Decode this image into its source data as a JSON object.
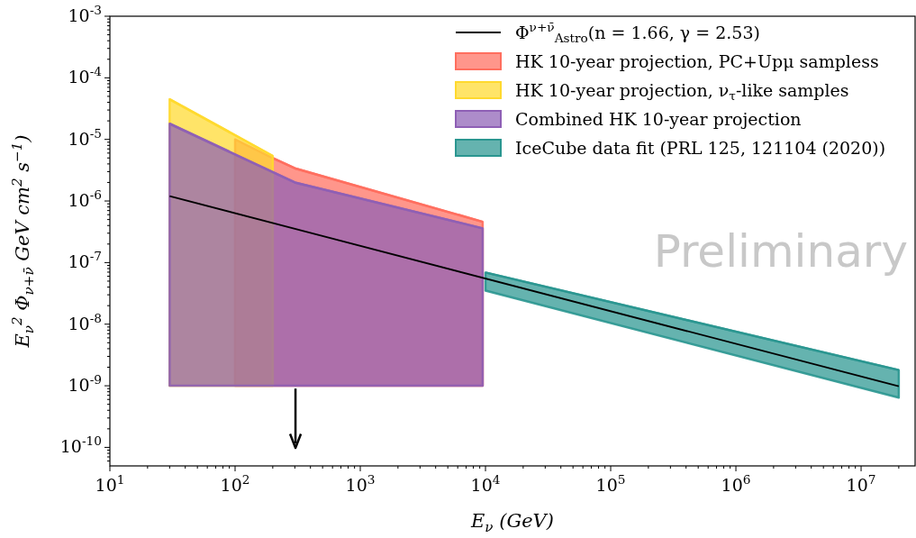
{
  "chart_data": {
    "type": "line",
    "xlabel": "E$_{ν}$ (GeV)",
    "ylabel": "E$_{ν}$$^{2}$ Φ$_{ν+ν̄}$ GeV cm$^{2}$ s$^{−1}$)",
    "log": "xy",
    "xlim": [
      10,
      27000000
    ],
    "ylim": [
      5e-11,
      0.001
    ],
    "xticks": [
      {
        "value": 10,
        "label": "10$^{1}$"
      },
      {
        "value": 100,
        "label": "10$^{2}$"
      },
      {
        "value": 1000,
        "label": "10$^{3}$"
      },
      {
        "value": 10000,
        "label": "10$^{4}$"
      },
      {
        "value": 100000,
        "label": "10$^{5}$"
      },
      {
        "value": 1000000,
        "label": "10$^{6}$"
      },
      {
        "value": 10000000,
        "label": "10$^{7}$"
      }
    ],
    "yticks": [
      {
        "value": 1e-10,
        "label": "10$^{-10}$"
      },
      {
        "value": 1e-09,
        "label": "10$^{-9}$"
      },
      {
        "value": 1e-08,
        "label": "10$^{-8}$"
      },
      {
        "value": 1e-07,
        "label": "10$^{-7}$"
      },
      {
        "value": 1e-06,
        "label": "10$^{-6}$"
      },
      {
        "value": 1e-05,
        "label": "10$^{-5}$"
      },
      {
        "value": 0.0001,
        "label": "10$^{-4}$"
      },
      {
        "value": 0.001,
        "label": "10$^{-3}$"
      }
    ],
    "legend": "top right",
    "annotations": [
      "Preliminary"
    ],
    "series": [
      {
        "name": "HK 10-year projection, PC+Upμ sampless",
        "color": "#ff6e5e",
        "x": [
          100,
          200,
          300,
          9500
        ],
        "values": [
          null,
          5e-06,
          3.4e-06,
          4.6e-07
        ],
        "upper": [
          1e-05,
          5e-06,
          3.4e-06,
          4.6e-07
        ],
        "lower": [
          1e-09,
          1e-09,
          1e-09,
          1e-09
        ]
      },
      {
        "name": "HK 10-year projection, ν$_{τ}$-like samples",
        "color": "#ffd92e",
        "x": [
          30,
          200
        ],
        "values": [
          4.5e-05,
          5.4e-06
        ],
        "upper": [
          4.5e-05,
          5.4e-06
        ],
        "lower": [
          1e-09,
          1e-09
        ]
      },
      {
        "name": "Combined HK 10-year projection",
        "color": "#8e5fb5",
        "x": [
          30,
          300,
          9500
        ],
        "values": [
          1.8e-05,
          2e-06,
          3.6e-07
        ],
        "upper": [
          1.8e-05,
          2e-06,
          3.6e-07
        ],
        "lower": [
          1e-09,
          1e-09,
          1e-09
        ]
      },
      {
        "name": "IceCube data fit (PRL 125, 121104 (2020))",
        "color": "#2a9690",
        "x": [
          10000,
          20000000
        ],
        "values": [
          6.9e-08,
          1.8e-09
        ],
        "upper": [
          6.9e-08,
          1.8e-09
        ],
        "lower": [
          3.5e-08,
          6.4e-10
        ]
      },
      {
        "name": "Φ$^{ν+ν̄}$$_{Astro}$(n = 1.66, γ = 2.53)",
        "color": "#000000",
        "x": [
          30,
          20000000
        ],
        "values": [
          1.2e-06,
          9.8e-10
        ]
      }
    ]
  }
}
